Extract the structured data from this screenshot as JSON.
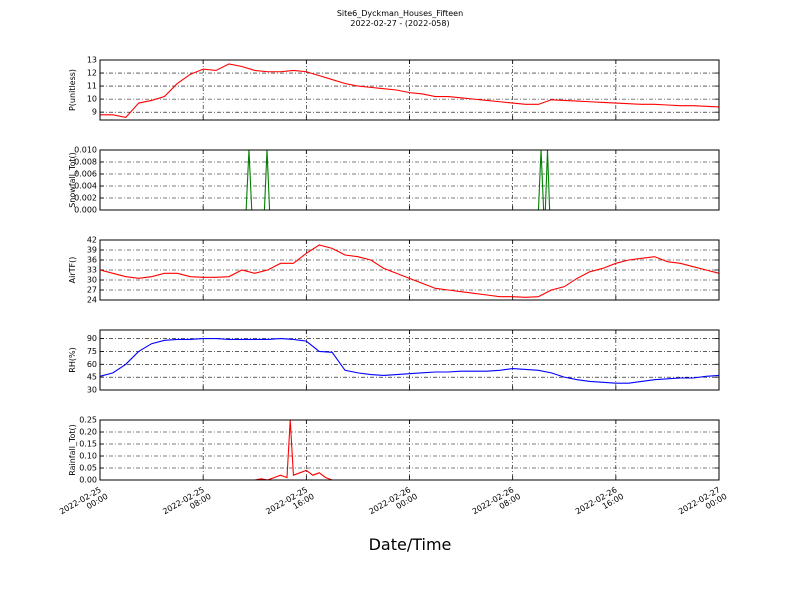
{
  "chart_data": [
    {
      "type": "line",
      "title": "Site6_Dyckman_Houses_Fifteen",
      "subtitle": "2022-02-27 - (2022-058)",
      "ylabel": "P(unitless)",
      "color": "#ff0000",
      "xlim": [
        "2022-02-25 00:00",
        "2022-02-27 00:00"
      ],
      "xticks": [
        "2022-02-25 00:00",
        "2022-02-25 08:00",
        "2022-02-25 16:00",
        "2022-02-26 00:00",
        "2022-02-26 08:00",
        "2022-02-26 16:00",
        "2022-02-27 00:00"
      ],
      "ylim": [
        8.4,
        13
      ],
      "yticks": [
        9,
        10,
        11,
        12,
        13
      ],
      "grid": true,
      "x": [
        "2022-02-25 00:00",
        "2022-02-25 01:00",
        "2022-02-25 02:00",
        "2022-02-25 03:00",
        "2022-02-25 04:00",
        "2022-02-25 05:00",
        "2022-02-25 06:00",
        "2022-02-25 07:00",
        "2022-02-25 08:00",
        "2022-02-25 09:00",
        "2022-02-25 10:00",
        "2022-02-25 11:00",
        "2022-02-25 12:00",
        "2022-02-25 13:00",
        "2022-02-25 14:00",
        "2022-02-25 15:00",
        "2022-02-25 16:00",
        "2022-02-25 17:00",
        "2022-02-25 18:00",
        "2022-02-25 19:00",
        "2022-02-25 20:00",
        "2022-02-25 21:00",
        "2022-02-25 22:00",
        "2022-02-25 23:00",
        "2022-02-26 00:00",
        "2022-02-26 01:00",
        "2022-02-26 02:00",
        "2022-02-26 03:00",
        "2022-02-26 04:00",
        "2022-02-26 05:00",
        "2022-02-26 06:00",
        "2022-02-26 07:00",
        "2022-02-26 08:00",
        "2022-02-26 09:00",
        "2022-02-26 10:00",
        "2022-02-26 11:00",
        "2022-02-26 12:00",
        "2022-02-26 13:00",
        "2022-02-26 14:00",
        "2022-02-26 15:00",
        "2022-02-26 16:00",
        "2022-02-26 17:00",
        "2022-02-26 18:00",
        "2022-02-26 19:00",
        "2022-02-26 20:00",
        "2022-02-26 21:00",
        "2022-02-26 22:00",
        "2022-02-26 23:00",
        "2022-02-27 00:00"
      ],
      "values": [
        8.8,
        8.8,
        8.6,
        9.7,
        9.9,
        10.2,
        11.2,
        11.9,
        12.3,
        12.2,
        12.7,
        12.5,
        12.2,
        12.1,
        12.1,
        12.2,
        12.1,
        11.8,
        11.5,
        11.2,
        11.0,
        10.9,
        10.8,
        10.7,
        10.5,
        10.4,
        10.2,
        10.2,
        10.1,
        10.0,
        9.9,
        9.8,
        9.7,
        9.6,
        9.6,
        9.95,
        9.9,
        9.85,
        9.8,
        9.75,
        9.7,
        9.65,
        9.6,
        9.6,
        9.55,
        9.5,
        9.5,
        9.45,
        9.4
      ]
    },
    {
      "type": "line",
      "ylabel": "Snowfall_Tot()",
      "color": "#007f00",
      "xlim": [
        "2022-02-25 00:00",
        "2022-02-27 00:00"
      ],
      "xticks": [
        "2022-02-25 00:00",
        "2022-02-25 08:00",
        "2022-02-25 16:00",
        "2022-02-26 00:00",
        "2022-02-26 08:00",
        "2022-02-26 16:00",
        "2022-02-27 00:00"
      ],
      "ylim": [
        0,
        0.01
      ],
      "yticks": [
        {
          "value": 0,
          "label": "0.000"
        },
        {
          "value": 0.002,
          "label": "0.002"
        },
        {
          "value": 0.004,
          "label": "0.004"
        },
        {
          "value": 0.006,
          "label": "0.006"
        },
        {
          "value": 0.008,
          "label": "0.008"
        },
        {
          "value": 0.01,
          "label": "0.010"
        }
      ],
      "grid": true,
      "x": [
        "2022-02-25 00:00",
        "2022-02-25 11:20",
        "2022-02-25 11:33",
        "2022-02-25 11:46",
        "2022-02-25 12:45",
        "2022-02-25 12:57",
        "2022-02-25 13:09",
        "2022-02-26 10:00",
        "2022-02-26 10:12",
        "2022-02-26 10:24",
        "2022-02-26 10:32",
        "2022-02-26 10:42",
        "2022-02-26 10:52",
        "2022-02-27 00:00"
      ],
      "values": [
        0,
        0,
        0.01,
        0,
        0,
        0.01,
        0,
        0,
        0.01,
        0,
        0,
        0.01,
        0,
        0
      ]
    },
    {
      "type": "line",
      "ylabel": "AirTF()",
      "color": "#ff0000",
      "xlim": [
        "2022-02-25 00:00",
        "2022-02-27 00:00"
      ],
      "xticks": [
        "2022-02-25 00:00",
        "2022-02-25 08:00",
        "2022-02-25 16:00",
        "2022-02-26 00:00",
        "2022-02-26 08:00",
        "2022-02-26 16:00",
        "2022-02-27 00:00"
      ],
      "ylim": [
        24,
        42
      ],
      "yticks": [
        24,
        27,
        30,
        33,
        36,
        39,
        42
      ],
      "grid": true,
      "x": [
        "2022-02-25 00:00",
        "2022-02-25 01:00",
        "2022-02-25 02:00",
        "2022-02-25 03:00",
        "2022-02-25 04:00",
        "2022-02-25 05:00",
        "2022-02-25 06:00",
        "2022-02-25 07:00",
        "2022-02-25 08:00",
        "2022-02-25 09:00",
        "2022-02-25 10:00",
        "2022-02-25 11:00",
        "2022-02-25 12:00",
        "2022-02-25 13:00",
        "2022-02-25 14:00",
        "2022-02-25 15:00",
        "2022-02-25 16:00",
        "2022-02-25 17:00",
        "2022-02-25 18:00",
        "2022-02-25 19:00",
        "2022-02-25 20:00",
        "2022-02-25 21:00",
        "2022-02-25 22:00",
        "2022-02-25 23:00",
        "2022-02-26 00:00",
        "2022-02-26 01:00",
        "2022-02-26 02:00",
        "2022-02-26 03:00",
        "2022-02-26 04:00",
        "2022-02-26 05:00",
        "2022-02-26 06:00",
        "2022-02-26 07:00",
        "2022-02-26 08:00",
        "2022-02-26 09:00",
        "2022-02-26 10:00",
        "2022-02-26 11:00",
        "2022-02-26 12:00",
        "2022-02-26 13:00",
        "2022-02-26 14:00",
        "2022-02-26 15:00",
        "2022-02-26 16:00",
        "2022-02-26 17:00",
        "2022-02-26 18:00",
        "2022-02-26 19:00",
        "2022-02-26 20:00",
        "2022-02-26 21:00",
        "2022-02-26 22:00",
        "2022-02-26 23:00",
        "2022-02-27 00:00"
      ],
      "values": [
        33,
        32,
        31,
        30.5,
        31,
        32,
        32,
        31,
        30.8,
        30.8,
        31,
        33,
        32,
        33,
        35,
        35,
        38,
        40.5,
        39.5,
        37.5,
        37,
        36,
        33.5,
        32,
        30.5,
        29,
        27.5,
        27,
        26.5,
        26,
        25.5,
        25,
        25,
        24.8,
        25,
        27,
        28,
        30.5,
        32.5,
        33.5,
        35,
        36,
        36.5,
        37,
        35.5,
        35,
        34,
        33,
        32
      ]
    },
    {
      "type": "line",
      "ylabel": "RH(%)",
      "color": "#0000ff",
      "xlim": [
        "2022-02-25 00:00",
        "2022-02-27 00:00"
      ],
      "xticks": [
        "2022-02-25 00:00",
        "2022-02-25 08:00",
        "2022-02-25 16:00",
        "2022-02-26 00:00",
        "2022-02-26 08:00",
        "2022-02-26 16:00",
        "2022-02-27 00:00"
      ],
      "ylim": [
        30,
        100
      ],
      "yticks": [
        30,
        45,
        60,
        75,
        90
      ],
      "grid": true,
      "x": [
        "2022-02-25 00:00",
        "2022-02-25 01:00",
        "2022-02-25 02:00",
        "2022-02-25 03:00",
        "2022-02-25 04:00",
        "2022-02-25 05:00",
        "2022-02-25 06:00",
        "2022-02-25 07:00",
        "2022-02-25 08:00",
        "2022-02-25 09:00",
        "2022-02-25 10:00",
        "2022-02-25 11:00",
        "2022-02-25 12:00",
        "2022-02-25 13:00",
        "2022-02-25 14:00",
        "2022-02-25 15:00",
        "2022-02-25 16:00",
        "2022-02-25 17:00",
        "2022-02-25 18:00",
        "2022-02-25 19:00",
        "2022-02-25 20:00",
        "2022-02-25 21:00",
        "2022-02-25 22:00",
        "2022-02-25 23:00",
        "2022-02-26 00:00",
        "2022-02-26 01:00",
        "2022-02-26 02:00",
        "2022-02-26 03:00",
        "2022-02-26 04:00",
        "2022-02-26 05:00",
        "2022-02-26 06:00",
        "2022-02-26 07:00",
        "2022-02-26 08:00",
        "2022-02-26 09:00",
        "2022-02-26 10:00",
        "2022-02-26 11:00",
        "2022-02-26 12:00",
        "2022-02-26 13:00",
        "2022-02-26 14:00",
        "2022-02-26 15:00",
        "2022-02-26 16:00",
        "2022-02-26 17:00",
        "2022-02-26 18:00",
        "2022-02-26 19:00",
        "2022-02-26 20:00",
        "2022-02-26 21:00",
        "2022-02-26 22:00",
        "2022-02-26 23:00",
        "2022-02-27 00:00"
      ],
      "values": [
        46,
        50,
        60,
        75,
        84,
        88,
        89,
        89,
        90,
        90,
        89,
        89,
        89,
        89,
        90,
        89,
        87,
        75,
        74,
        53,
        50,
        48,
        47,
        48,
        49,
        50,
        51,
        51,
        52,
        52,
        52,
        53,
        55,
        54,
        53,
        50,
        45,
        42,
        40,
        39,
        38,
        38,
        40,
        42,
        43,
        44,
        44,
        46,
        47
      ]
    },
    {
      "type": "line",
      "ylabel": "Rainfall_Tot()",
      "xlabel": "Date/Time",
      "color": "#ff0000",
      "xlim": [
        "2022-02-25 00:00",
        "2022-02-27 00:00"
      ],
      "xticks": [
        "2022-02-25 00:00",
        "2022-02-25 08:00",
        "2022-02-25 16:00",
        "2022-02-26 00:00",
        "2022-02-26 08:00",
        "2022-02-26 16:00",
        "2022-02-27 00:00"
      ],
      "ylim": [
        0,
        0.25
      ],
      "yticks": [
        {
          "value": 0,
          "label": "0.00"
        },
        {
          "value": 0.05,
          "label": "0.05"
        },
        {
          "value": 0.1,
          "label": "0.10"
        },
        {
          "value": 0.15,
          "label": "0.15"
        },
        {
          "value": 0.2,
          "label": "0.20"
        },
        {
          "value": 0.25,
          "label": "0.25"
        }
      ],
      "grid": true,
      "x": [
        "2022-02-25 00:00",
        "2022-02-25 12:00",
        "2022-02-25 12:30",
        "2022-02-25 13:00",
        "2022-02-25 13:30",
        "2022-02-25 14:00",
        "2022-02-25 14:30",
        "2022-02-25 14:45",
        "2022-02-25 15:00",
        "2022-02-25 15:30",
        "2022-02-25 16:00",
        "2022-02-25 16:30",
        "2022-02-25 17:00",
        "2022-02-25 17:30",
        "2022-02-25 18:00",
        "2022-02-27 00:00"
      ],
      "values": [
        0,
        0,
        0.005,
        0,
        0.01,
        0.02,
        0.01,
        0.25,
        0.02,
        0.03,
        0.04,
        0.02,
        0.03,
        0.01,
        0,
        0
      ]
    }
  ]
}
